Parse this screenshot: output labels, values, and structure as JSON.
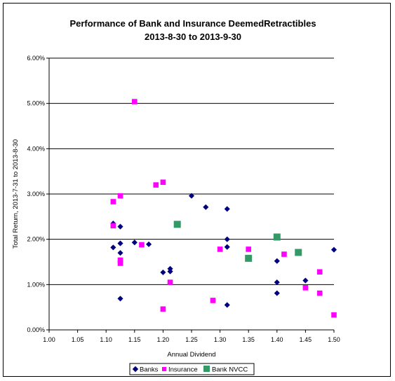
{
  "chart_data": {
    "type": "scatter",
    "title_lines": [
      "Performance of Bank and Insurance DeemedRetractibles",
      "2013-8-30 to 2013-9-30"
    ],
    "xlabel": "Annual Dividend",
    "ylabel": "Total Return, 2013-7-31 to 2013-8-30",
    "xlim": [
      1.0,
      1.5
    ],
    "ylim": [
      0.0,
      6.0
    ],
    "x_ticks": [
      "1.00",
      "1.05",
      "1.10",
      "1.15",
      "1.20",
      "1.25",
      "1.30",
      "1.35",
      "1.40",
      "1.45",
      "1.50"
    ],
    "y_ticks": [
      "0.00%",
      "1.00%",
      "2.00%",
      "3.00%",
      "4.00%",
      "5.00%",
      "6.00%"
    ],
    "grid": "horizontal",
    "legend_position": "bottom",
    "series": [
      {
        "name": "Banks",
        "color": "#000080",
        "marker": "diamond",
        "points": [
          [
            1.1125,
            2.35
          ],
          [
            1.1125,
            1.82
          ],
          [
            1.125,
            2.28
          ],
          [
            1.125,
            1.91
          ],
          [
            1.125,
            1.7
          ],
          [
            1.125,
            0.69
          ],
          [
            1.15,
            1.93
          ],
          [
            1.175,
            1.89
          ],
          [
            1.2,
            1.27
          ],
          [
            1.2125,
            1.35
          ],
          [
            1.2125,
            1.29
          ],
          [
            1.25,
            2.96
          ],
          [
            1.275,
            2.71
          ],
          [
            1.3125,
            2.67
          ],
          [
            1.3125,
            2.0
          ],
          [
            1.3125,
            1.83
          ],
          [
            1.3125,
            0.55
          ],
          [
            1.4,
            1.52
          ],
          [
            1.4,
            1.05
          ],
          [
            1.4,
            0.81
          ],
          [
            1.45,
            1.09
          ],
          [
            1.5,
            1.77
          ]
        ]
      },
      {
        "name": "Insurance",
        "color": "#ff00ff",
        "marker": "square",
        "points": [
          [
            1.1125,
            2.83
          ],
          [
            1.1125,
            2.3
          ],
          [
            1.125,
            2.96
          ],
          [
            1.125,
            1.54
          ],
          [
            1.125,
            1.47
          ],
          [
            1.15,
            5.04
          ],
          [
            1.1625,
            1.88
          ],
          [
            1.1875,
            3.2
          ],
          [
            1.2,
            3.26
          ],
          [
            1.2,
            0.46
          ],
          [
            1.2125,
            1.05
          ],
          [
            1.2875,
            0.65
          ],
          [
            1.3,
            1.78
          ],
          [
            1.35,
            1.78
          ],
          [
            1.4125,
            1.67
          ],
          [
            1.45,
            0.93
          ],
          [
            1.475,
            1.28
          ],
          [
            1.475,
            0.81
          ],
          [
            1.5,
            0.33
          ]
        ]
      },
      {
        "name": "Bank NVCC",
        "color": "#339966",
        "marker": "square-large",
        "points": [
          [
            1.225,
            2.33
          ],
          [
            1.35,
            1.58
          ],
          [
            1.4,
            2.05
          ],
          [
            1.4375,
            1.71
          ]
        ]
      }
    ]
  }
}
